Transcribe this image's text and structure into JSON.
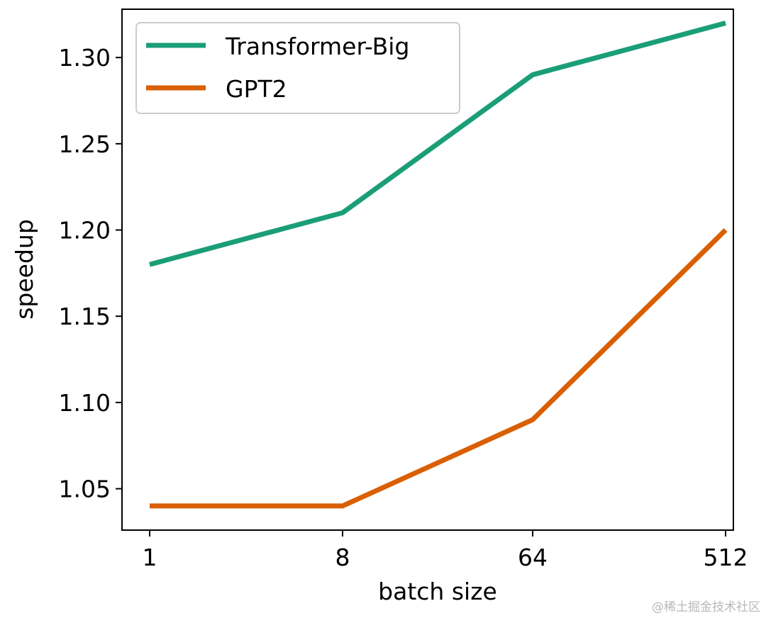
{
  "chart_data": {
    "type": "line",
    "title": "",
    "xlabel": "batch size",
    "ylabel": "speedup",
    "categories": [
      "1",
      "8",
      "64",
      "512"
    ],
    "yticks": [
      "1.05",
      "1.10",
      "1.15",
      "1.20",
      "1.25",
      "1.30"
    ],
    "ylim": [
      1.026,
      1.328
    ],
    "grid": false,
    "legend_position": "top-left",
    "series": [
      {
        "name": "Transformer-Big",
        "color": "#1b9e77",
        "values": [
          1.18,
          1.21,
          1.29,
          1.32
        ]
      },
      {
        "name": "GPT2",
        "color": "#d95f02",
        "values": [
          1.04,
          1.04,
          1.09,
          1.2
        ]
      }
    ]
  },
  "watermark": "@稀土掘金技术社区"
}
